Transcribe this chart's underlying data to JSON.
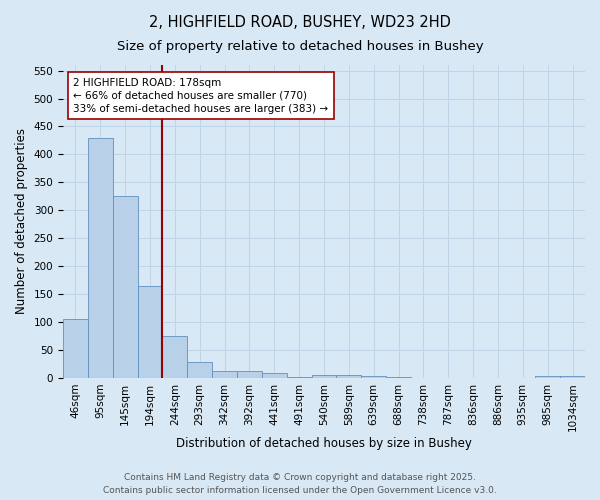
{
  "title_line1": "2, HIGHFIELD ROAD, BUSHEY, WD23 2HD",
  "title_line2": "Size of property relative to detached houses in Bushey",
  "xlabel": "Distribution of detached houses by size in Bushey",
  "ylabel": "Number of detached properties",
  "categories": [
    "46sqm",
    "95sqm",
    "145sqm",
    "194sqm",
    "244sqm",
    "293sqm",
    "342sqm",
    "392sqm",
    "441sqm",
    "491sqm",
    "540sqm",
    "589sqm",
    "639sqm",
    "688sqm",
    "738sqm",
    "787sqm",
    "836sqm",
    "886sqm",
    "935sqm",
    "985sqm",
    "1034sqm"
  ],
  "values": [
    105,
    430,
    325,
    165,
    75,
    28,
    13,
    13,
    9,
    1,
    5,
    5,
    3,
    1,
    0,
    0,
    0,
    0,
    0,
    4,
    3
  ],
  "bar_color": "#b8d0e8",
  "bar_edge_color": "#6090c0",
  "bar_linewidth": 0.6,
  "vline_x": 3.5,
  "vline_color": "#990000",
  "vline_linewidth": 1.5,
  "annotation_text": "2 HIGHFIELD ROAD: 178sqm\n← 66% of detached houses are smaller (770)\n33% of semi-detached houses are larger (383) →",
  "annotation_box_facecolor": "#ffffff",
  "annotation_box_edgecolor": "#990000",
  "annotation_fontsize": 7.5,
  "ylim": [
    0,
    560
  ],
  "yticks": [
    0,
    50,
    100,
    150,
    200,
    250,
    300,
    350,
    400,
    450,
    500,
    550
  ],
  "grid_color": "#c0d4e8",
  "background_color": "#d8e8f4",
  "plot_bg_color": "#d8e8f4",
  "footer_text": "Contains HM Land Registry data © Crown copyright and database right 2025.\nContains public sector information licensed under the Open Government Licence v3.0.",
  "title1_fontsize": 10.5,
  "title2_fontsize": 9.5,
  "axis_label_fontsize": 8.5,
  "tick_fontsize": 7.5,
  "footer_fontsize": 6.5
}
